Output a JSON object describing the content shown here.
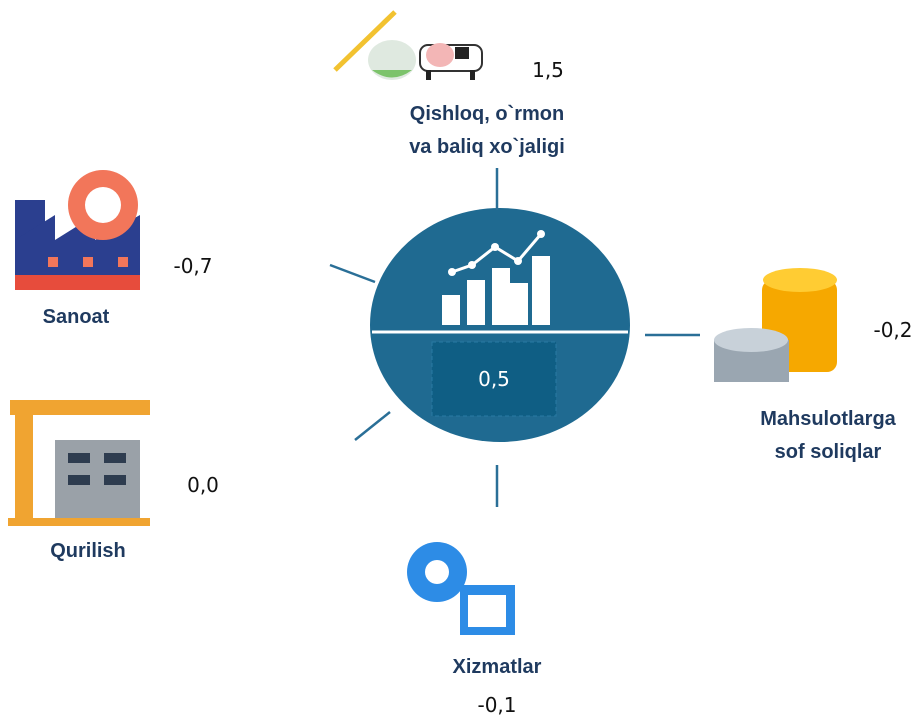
{
  "center": {
    "value": "0,5"
  },
  "sectors": [
    {
      "label": [
        "Qishloq, o`rmon",
        "va baliq xo`jaligi"
      ],
      "value": "1,5"
    },
    {
      "label": [
        "Sanoat"
      ],
      "value": "-0,7"
    },
    {
      "label": [
        "Qurilish"
      ],
      "value": "0,0"
    },
    {
      "label": [
        "Xizmatlar"
      ],
      "value": "-0,1"
    },
    {
      "label": [
        "Mahsulotlarga",
        "sof soliqlar"
      ],
      "value": "-0,2"
    }
  ]
}
